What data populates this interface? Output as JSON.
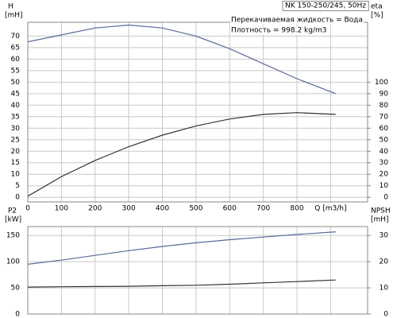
{
  "chart_data": [
    {
      "type": "line",
      "title": "NK 150-250/245, 50Hz",
      "annotations": [
        "Перекачиваемая жидкость = Вода",
        "Плотность = 998.2 kg/m3"
      ],
      "ylabel": "H",
      "yunit": "[mH]",
      "y2label": "eta",
      "y2unit": "[%]",
      "x": [
        0,
        100,
        200,
        300,
        400,
        500,
        600,
        700,
        800,
        915
      ],
      "xlim": [
        0,
        1010
      ],
      "xticks": [
        0,
        100,
        200,
        300,
        400,
        500,
        600,
        700,
        800,
        {
          "value": 900,
          "label": "Q [m3/h]"
        }
      ],
      "ylim": [
        -2,
        76
      ],
      "yticks": [
        0,
        5,
        10,
        15,
        20,
        25,
        30,
        35,
        40,
        45,
        50,
        55,
        60,
        65,
        70
      ],
      "y2lim": [
        -4,
        152
      ],
      "y2ticks": [
        0,
        10,
        20,
        30,
        40,
        50,
        60,
        70,
        80,
        90,
        100
      ],
      "grid": true,
      "series": [
        {
          "color": "#5a6a9a",
          "values": [
            67.5,
            70.5,
            73.5,
            74.8,
            73.5,
            70,
            64.5,
            58,
            51.5,
            45
          ]
        },
        {
          "color": "#333333",
          "axis": "y2",
          "values": [
            1,
            18,
            32,
            44,
            54,
            62,
            68,
            72,
            73.5,
            72
          ]
        }
      ]
    },
    {
      "type": "line",
      "ylabel": "P2",
      "yunit": "[kW]",
      "y2label": "NPSH",
      "y2unit": "[mH]",
      "x": [
        0,
        100,
        200,
        300,
        400,
        500,
        600,
        700,
        800,
        915
      ],
      "xlim": [
        0,
        1010
      ],
      "ylim": [
        0,
        167
      ],
      "yticks": [
        0,
        50,
        100,
        150
      ],
      "y2lim": [
        0,
        33.4
      ],
      "y2ticks": [
        0,
        10,
        20,
        30
      ],
      "grid": true,
      "series": [
        {
          "color": "#5a6a9a",
          "values": [
            95,
            103,
            112,
            121,
            129,
            136,
            142,
            147,
            152,
            157
          ]
        },
        {
          "color": "#333333",
          "axis": "y2",
          "values": [
            10.3,
            10.4,
            10.5,
            10.6,
            10.8,
            11,
            11.4,
            11.9,
            12.4,
            13
          ]
        }
      ]
    }
  ]
}
